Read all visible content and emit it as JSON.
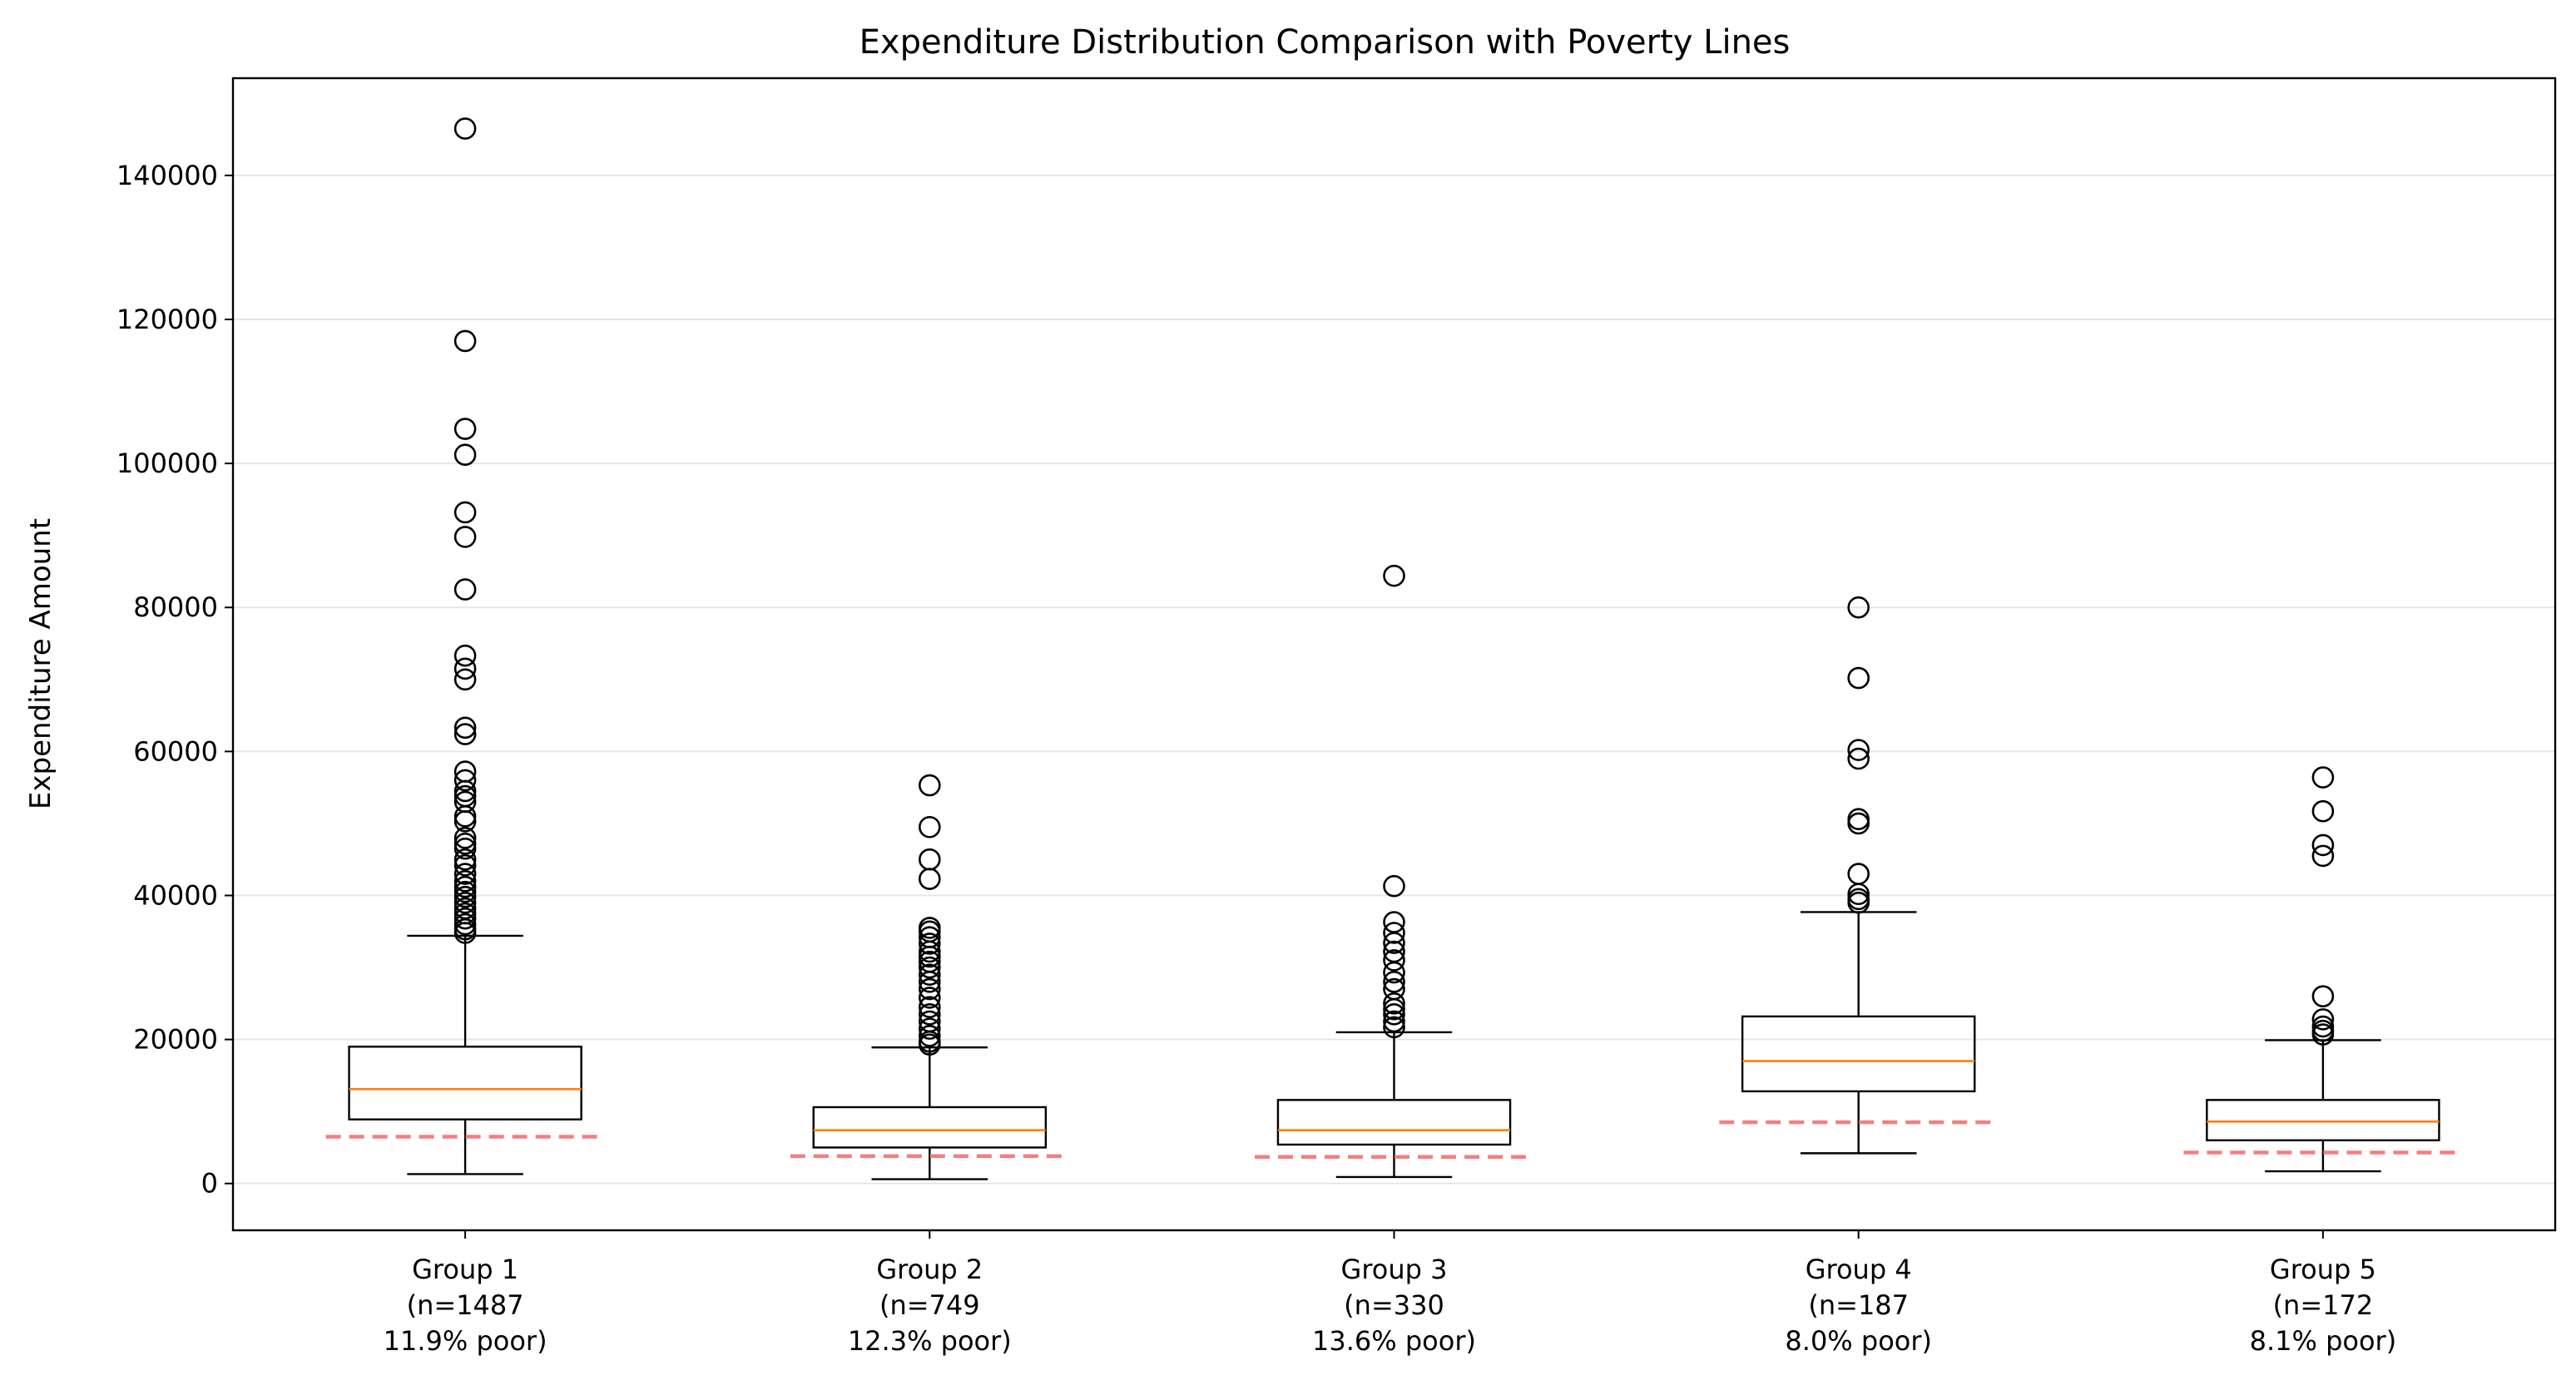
{
  "chart_data": {
    "type": "boxplot",
    "title": "Expenditure Distribution Comparison with Poverty Lines",
    "xlabel": "",
    "ylabel": "Expenditure Amount",
    "ylim": [
      -6500,
      153500
    ],
    "yticks": [
      0,
      20000,
      40000,
      60000,
      80000,
      100000,
      120000,
      140000
    ],
    "grid": "horizontal",
    "colors": {
      "box": "#000000",
      "median": "#ff7f0e",
      "poverty_line": "#f08080",
      "grid": "#e6e6e6"
    },
    "groups": [
      {
        "label_lines": [
          "Group 1",
          "(n=1487",
          "11.9% poor)"
        ],
        "whisker_low": 1300,
        "q1": 8900,
        "median": 13100,
        "q3": 19000,
        "whisker_high": 34400,
        "poverty_line": 6500,
        "outliers": [
          146500,
          117000,
          104800,
          101200,
          93200,
          89800,
          82500,
          73300,
          71500,
          70000,
          63300,
          62400,
          57200,
          56000,
          54500,
          53800,
          53000,
          51000,
          50300,
          48000,
          47200,
          46500,
          45000,
          44200,
          43000,
          42000,
          41200,
          40500,
          39800,
          39000,
          38200,
          37500,
          36800,
          36000,
          35300,
          34800
        ]
      },
      {
        "label_lines": [
          "Group 2",
          "(n=749",
          "12.3% poor)"
        ],
        "whisker_low": 600,
        "q1": 5000,
        "median": 7400,
        "q3": 10600,
        "whisker_high": 18900,
        "poverty_line": 3800,
        "outliers": [
          55300,
          49500,
          45000,
          42300,
          35500,
          35000,
          34200,
          33300,
          32200,
          31500,
          30800,
          30000,
          29000,
          28000,
          27000,
          25800,
          24500,
          23500,
          22500,
          21500,
          20500,
          19700,
          19300
        ]
      },
      {
        "label_lines": [
          "Group 3",
          "(n=330",
          "13.6% poor)"
        ],
        "whisker_low": 900,
        "q1": 5400,
        "median": 7400,
        "q3": 11600,
        "whisker_high": 21000,
        "poverty_line": 3700,
        "outliers": [
          84400,
          41300,
          36300,
          34800,
          33400,
          32200,
          31000,
          29300,
          28000,
          27000,
          25000,
          24200,
          23500,
          22500,
          21700
        ]
      },
      {
        "label_lines": [
          "Group 4",
          "(n=187",
          "8.0% poor)"
        ],
        "whisker_low": 4200,
        "q1": 12800,
        "median": 17000,
        "q3": 23200,
        "whisker_high": 37700,
        "poverty_line": 8500,
        "outliers": [
          80000,
          70200,
          60200,
          59000,
          50600,
          50000,
          43000,
          40200,
          39500,
          39000
        ]
      },
      {
        "label_lines": [
          "Group 5",
          "(n=172",
          "8.1% poor)"
        ],
        "whisker_low": 1700,
        "q1": 6000,
        "median": 8600,
        "q3": 11600,
        "whisker_high": 19900,
        "poverty_line": 4300,
        "outliers": [
          56400,
          51700,
          47000,
          45500,
          26000,
          22800,
          21800,
          21200,
          20700
        ]
      }
    ]
  }
}
